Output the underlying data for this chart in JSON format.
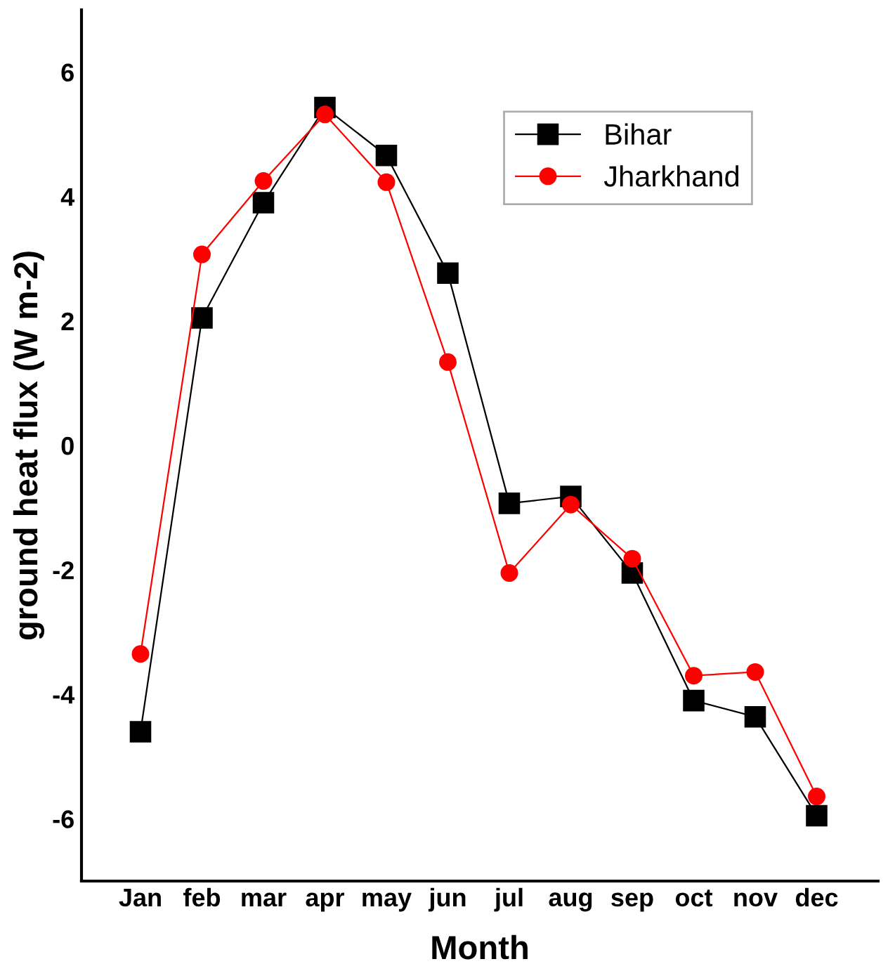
{
  "chart_data": {
    "type": "line",
    "xlabel": "Month",
    "ylabel": "ground heat flux (W m-2)",
    "categories": [
      "Jan",
      "feb",
      "mar",
      "apr",
      "may",
      "jun",
      "jul",
      "aug",
      "sep",
      "oct",
      "nov",
      "dec"
    ],
    "series": [
      {
        "name": "Bihar",
        "color": "#000000",
        "marker": "square",
        "values": [
          -4.6,
          2.05,
          3.9,
          5.43,
          4.66,
          2.77,
          -0.93,
          -0.82,
          -2.05,
          -4.1,
          -4.36,
          -5.95
        ]
      },
      {
        "name": "Jharkhand",
        "color": "#ff0000",
        "marker": "circle",
        "values": [
          -3.35,
          3.07,
          4.25,
          5.32,
          4.23,
          1.34,
          -2.05,
          -0.95,
          -1.82,
          -3.7,
          -3.64,
          -5.64
        ]
      }
    ],
    "ylim": [
      -7,
      7
    ],
    "yticks": [
      -6,
      -4,
      -2,
      0,
      2,
      4,
      6
    ],
    "grid": false,
    "legend": "top right",
    "line_style": "solid"
  }
}
